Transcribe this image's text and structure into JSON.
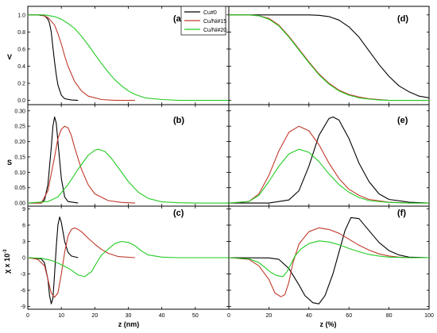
{
  "colors": {
    "Cu#0": "#000000",
    "Cu/Ni#15": "#c0392b",
    "Cu/Ni#20": "#22cc22"
  },
  "legend": {
    "placement": "top-left of panel (a) right side",
    "entries": [
      "Cu#0",
      "Cu/Ni#15",
      "Cu/Ni#20"
    ]
  },
  "rows": [
    {
      "ylabel": "V",
      "yticks": [
        "0.0",
        "0.2",
        "0.4",
        "0.6",
        "0.8",
        "1.0"
      ]
    },
    {
      "ylabel": "S",
      "yticks": [
        "0.00",
        "0.05",
        "0.10",
        "0.15",
        "0.20",
        "0.25",
        "0.30"
      ]
    },
    {
      "ylabel": "χ x 10",
      "ylabel_sup": "-3",
      "yticks": [
        "-9",
        "-6",
        "-3",
        "0",
        "3",
        "6",
        "9"
      ]
    }
  ],
  "xaxes": {
    "left": {
      "label": "z (nm)",
      "ticks": [
        "0",
        "10",
        "20",
        "30",
        "40",
        "50"
      ]
    },
    "right": {
      "label": "z (%)",
      "ticks": [
        "0",
        "20",
        "40",
        "60",
        "80",
        "100"
      ]
    }
  },
  "chart_data": [
    {
      "type": "line",
      "panel": "(a)",
      "xlim": [
        0,
        60
      ],
      "ylim": [
        -0.05,
        1.1
      ],
      "series": [
        {
          "name": "Cu#0",
          "x": [
            0,
            3,
            5,
            6,
            6.5,
            7,
            7.5,
            8,
            8.5,
            9,
            10,
            11,
            13,
            15
          ],
          "values": [
            1,
            1,
            0.99,
            0.95,
            0.9,
            0.8,
            0.62,
            0.45,
            0.3,
            0.18,
            0.06,
            0.02,
            0.005,
            0
          ]
        },
        {
          "name": "Cu/Ni#15",
          "x": [
            0,
            4,
            6,
            8,
            9,
            10,
            11,
            12,
            14,
            16,
            18,
            22,
            26,
            32
          ],
          "values": [
            1,
            1,
            0.97,
            0.88,
            0.78,
            0.66,
            0.52,
            0.4,
            0.22,
            0.11,
            0.05,
            0.01,
            0,
            0
          ]
        },
        {
          "name": "Cu/Ni#20",
          "x": [
            0,
            5,
            8,
            10,
            12,
            14,
            16,
            18,
            20,
            22,
            24,
            26,
            28,
            30,
            32,
            35,
            40,
            45,
            50,
            60
          ],
          "values": [
            1,
            1,
            0.98,
            0.95,
            0.9,
            0.84,
            0.75,
            0.65,
            0.54,
            0.43,
            0.33,
            0.24,
            0.17,
            0.11,
            0.07,
            0.03,
            0.01,
            0,
            0,
            0
          ]
        }
      ]
    },
    {
      "type": "line",
      "panel": "(d)",
      "xlim": [
        0,
        100
      ],
      "ylim": [
        -0.05,
        1.1
      ],
      "series": [
        {
          "name": "Cu#0",
          "x": [
            0,
            30,
            40,
            45,
            50,
            55,
            60,
            65,
            70,
            75,
            80,
            85,
            90,
            95,
            100
          ],
          "values": [
            1,
            1,
            1,
            0.995,
            0.98,
            0.94,
            0.86,
            0.74,
            0.58,
            0.42,
            0.28,
            0.17,
            0.1,
            0.05,
            0.03
          ]
        },
        {
          "name": "Cu/Ni#15",
          "x": [
            0,
            10,
            15,
            20,
            25,
            30,
            35,
            40,
            45,
            50,
            55,
            60,
            65,
            70,
            75,
            80,
            90,
            100
          ],
          "values": [
            1,
            1,
            0.99,
            0.96,
            0.88,
            0.75,
            0.6,
            0.45,
            0.31,
            0.2,
            0.12,
            0.07,
            0.04,
            0.02,
            0.01,
            0,
            0,
            0
          ]
        },
        {
          "name": "Cu/Ni#20",
          "x": [
            0,
            10,
            15,
            20,
            25,
            30,
            35,
            40,
            45,
            50,
            55,
            60,
            65,
            70,
            75,
            80,
            90,
            100
          ],
          "values": [
            1,
            1,
            0.99,
            0.95,
            0.87,
            0.74,
            0.59,
            0.44,
            0.3,
            0.19,
            0.11,
            0.06,
            0.03,
            0.015,
            0.005,
            0,
            0,
            0
          ]
        }
      ]
    },
    {
      "type": "line",
      "panel": "(b)",
      "xlim": [
        0,
        60
      ],
      "ylim": [
        -0.01,
        0.32
      ],
      "series": [
        {
          "name": "Cu#0",
          "x": [
            0,
            4,
            5,
            6,
            7,
            7.5,
            8,
            8.5,
            9,
            10,
            11,
            12,
            15
          ],
          "values": [
            0,
            0,
            0.01,
            0.06,
            0.18,
            0.25,
            0.28,
            0.26,
            0.2,
            0.08,
            0.02,
            0.005,
            0
          ]
        },
        {
          "name": "Cu/Ni#15",
          "x": [
            0,
            4,
            6,
            8,
            9,
            10,
            11,
            12,
            13,
            14,
            16,
            18,
            20,
            24,
            28,
            32
          ],
          "values": [
            0,
            0,
            0.04,
            0.15,
            0.21,
            0.24,
            0.25,
            0.245,
            0.22,
            0.18,
            0.11,
            0.06,
            0.03,
            0.008,
            0.002,
            0
          ]
        },
        {
          "name": "Cu/Ni#20",
          "x": [
            0,
            6,
            9,
            12,
            15,
            18,
            20,
            21,
            23,
            25,
            27,
            30,
            33,
            36,
            40,
            45,
            50,
            60
          ],
          "values": [
            0,
            0.005,
            0.02,
            0.06,
            0.11,
            0.155,
            0.172,
            0.175,
            0.168,
            0.145,
            0.115,
            0.07,
            0.035,
            0.015,
            0.004,
            0.001,
            0,
            0
          ]
        }
      ]
    },
    {
      "type": "line",
      "panel": "(e)",
      "xlim": [
        0,
        100
      ],
      "ylim": [
        -0.01,
        0.32
      ],
      "series": [
        {
          "name": "Cu#0",
          "x": [
            0,
            20,
            30,
            35,
            40,
            45,
            50,
            52,
            55,
            60,
            65,
            70,
            75,
            80,
            90,
            100
          ],
          "values": [
            0,
            0,
            0.01,
            0.04,
            0.12,
            0.22,
            0.275,
            0.28,
            0.27,
            0.21,
            0.13,
            0.07,
            0.03,
            0.012,
            0.003,
            0
          ]
        },
        {
          "name": "Cu/Ni#15",
          "x": [
            0,
            10,
            15,
            20,
            25,
            30,
            35,
            40,
            45,
            50,
            55,
            60,
            65,
            70,
            80,
            90,
            100
          ],
          "values": [
            0,
            0.005,
            0.03,
            0.09,
            0.17,
            0.23,
            0.25,
            0.235,
            0.19,
            0.13,
            0.08,
            0.045,
            0.025,
            0.012,
            0.003,
            0,
            0
          ]
        },
        {
          "name": "Cu/Ni#20",
          "x": [
            0,
            10,
            15,
            20,
            25,
            30,
            35,
            40,
            45,
            50,
            55,
            60,
            65,
            70,
            80,
            90,
            100
          ],
          "values": [
            0,
            0.005,
            0.025,
            0.07,
            0.12,
            0.16,
            0.175,
            0.165,
            0.135,
            0.095,
            0.06,
            0.035,
            0.018,
            0.008,
            0.002,
            0,
            0
          ]
        }
      ]
    },
    {
      "type": "line",
      "panel": "(c)",
      "xlim": [
        0,
        60
      ],
      "ylim": [
        -9.5,
        9.5
      ],
      "series": [
        {
          "name": "Cu#0",
          "x": [
            0,
            4,
            5,
            6,
            6.5,
            7,
            7.5,
            8,
            8.5,
            9,
            9.5,
            10,
            11,
            12,
            13,
            15
          ],
          "values": [
            0,
            -0.2,
            -1,
            -4,
            -7,
            -8.5,
            -7.5,
            -3,
            2,
            6,
            7.5,
            6.5,
            3,
            1,
            0.3,
            0
          ]
        },
        {
          "name": "Cu/Ni#15",
          "x": [
            0,
            3,
            5,
            6,
            7,
            8,
            9,
            10,
            11,
            12,
            13,
            14,
            15,
            16,
            18,
            20,
            22,
            24,
            27,
            32
          ],
          "values": [
            0,
            -0.3,
            -1.5,
            -4,
            -6.5,
            -7.3,
            -6.5,
            -3,
            1,
            4,
            5.2,
            5.5,
            5.2,
            4.8,
            3.6,
            2.5,
            1.5,
            0.8,
            0.2,
            0
          ]
        },
        {
          "name": "Cu/Ni#20",
          "x": [
            0,
            4,
            7,
            9,
            11,
            13,
            15,
            17,
            18,
            19,
            20,
            21,
            22,
            24,
            26,
            28,
            30,
            32,
            34,
            36,
            40,
            45,
            50,
            60
          ],
          "values": [
            0,
            -0.1,
            -0.5,
            -1,
            -1.6,
            -2.3,
            -3.2,
            -3.5,
            -3,
            -2.6,
            -1.5,
            -0.5,
            0.5,
            1.6,
            2.6,
            3,
            2.8,
            2.2,
            1.2,
            0.5,
            0.1,
            0,
            0,
            0
          ]
        }
      ]
    },
    {
      "type": "line",
      "panel": "(f)",
      "xlim": [
        0,
        100
      ],
      "ylim": [
        -9.5,
        9.5
      ],
      "series": [
        {
          "name": "Cu#0",
          "x": [
            0,
            20,
            25,
            30,
            35,
            38,
            42,
            45,
            48,
            52,
            55,
            58,
            61,
            65,
            70,
            75,
            80,
            85,
            90,
            100
          ],
          "values": [
            0,
            -0.05,
            -0.3,
            -2,
            -5,
            -7,
            -8.3,
            -8.5,
            -7,
            -3,
            1,
            5,
            7.4,
            7.2,
            5,
            2.8,
            1.3,
            0.5,
            0.1,
            0
          ]
        },
        {
          "name": "Cu/Ni#15",
          "x": [
            0,
            10,
            15,
            20,
            23,
            26,
            28,
            30,
            32,
            35,
            40,
            45,
            50,
            55,
            60,
            65,
            70,
            75,
            80,
            85,
            90,
            100
          ],
          "values": [
            0,
            -0.3,
            -1.5,
            -4,
            -6.5,
            -7.2,
            -6.8,
            -4.5,
            -1,
            2.5,
            4.8,
            5.5,
            5.2,
            4.5,
            3.4,
            2.3,
            1.4,
            0.7,
            0.3,
            0.1,
            0,
            0
          ]
        },
        {
          "name": "Cu/Ni#20",
          "x": [
            0,
            10,
            15,
            18,
            21,
            24,
            27,
            29,
            31,
            33,
            36,
            40,
            45,
            50,
            55,
            60,
            65,
            70,
            75,
            80,
            90,
            100
          ],
          "values": [
            0,
            -0.2,
            -0.9,
            -1.8,
            -2.7,
            -3.3,
            -3.5,
            -2.6,
            -1.2,
            0.3,
            1.6,
            2.6,
            3.1,
            2.9,
            2.4,
            1.7,
            1.1,
            0.6,
            0.3,
            0.1,
            0,
            0
          ]
        }
      ]
    }
  ]
}
